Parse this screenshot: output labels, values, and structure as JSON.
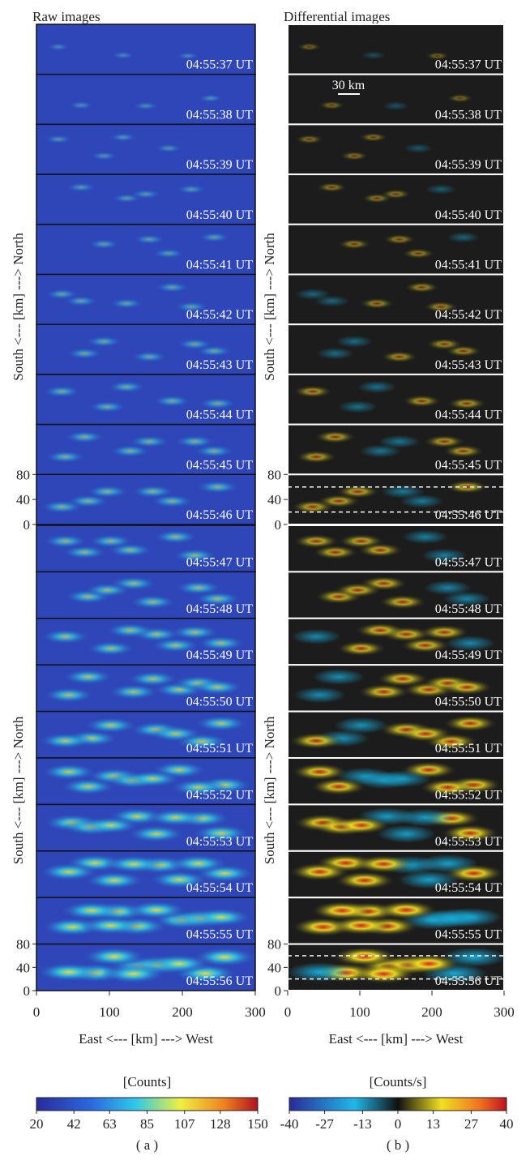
{
  "panels": [
    {
      "title": "Raw images",
      "xlabel": "East <--- [km] ---> West",
      "ylabel": "South <--- [km] ---> North",
      "xlim": [
        0,
        300
      ],
      "xticks": [
        0,
        100,
        200,
        300
      ],
      "ylim": [
        0,
        80
      ],
      "yticks": [
        0,
        40,
        80
      ],
      "colorbar": {
        "label": "[Counts]",
        "lim": [
          20,
          150
        ],
        "ticks": [
          20,
          42,
          63,
          85,
          107,
          128,
          150
        ]
      },
      "caption": "( a )",
      "frames": [
        "04:55:37 UT",
        "04:55:38 UT",
        "04:55:39 UT",
        "04:55:40 UT",
        "04:55:41 UT",
        "04:55:42 UT",
        "04:55:43 UT",
        "04:55:44 UT",
        "04:55:45 UT",
        "04:55:46 UT",
        "04:55:47 UT",
        "04:55:48 UT",
        "04:55:49 UT",
        "04:55:50 UT",
        "04:55:51 UT",
        "04:55:52 UT",
        "04:55:53 UT",
        "04:55:54 UT",
        "04:55:55 UT",
        "04:55:56 UT"
      ]
    },
    {
      "title": "Differential images",
      "xlabel": "East <--- [km] ---> West",
      "ylabel": "South <--- [km] ---> North",
      "xlim": [
        0,
        300
      ],
      "xticks": [
        0,
        100,
        200,
        300
      ],
      "ylim": [
        0,
        80
      ],
      "yticks": [
        0,
        40,
        80
      ],
      "colorbar": {
        "label": "[Counts/s]",
        "lim": [
          -40,
          40
        ],
        "ticks": [
          -40,
          -27,
          -13,
          0,
          13,
          27,
          40
        ]
      },
      "caption": "( b )",
      "scale_bar": "30 km",
      "frames": [
        "04:55:37 UT",
        "04:55:38 UT",
        "04:55:39 UT",
        "04:55:40 UT",
        "04:55:41 UT",
        "04:55:42 UT",
        "04:55:43 UT",
        "04:55:44 UT",
        "04:55:45 UT",
        "04:55:46 UT",
        "04:55:47 UT",
        "04:55:48 UT",
        "04:55:49 UT",
        "04:55:50 UT",
        "04:55:51 UT",
        "04:55:52 UT",
        "04:55:53 UT",
        "04:55:54 UT",
        "04:55:55 UT",
        "04:55:56 UT"
      ]
    }
  ]
}
